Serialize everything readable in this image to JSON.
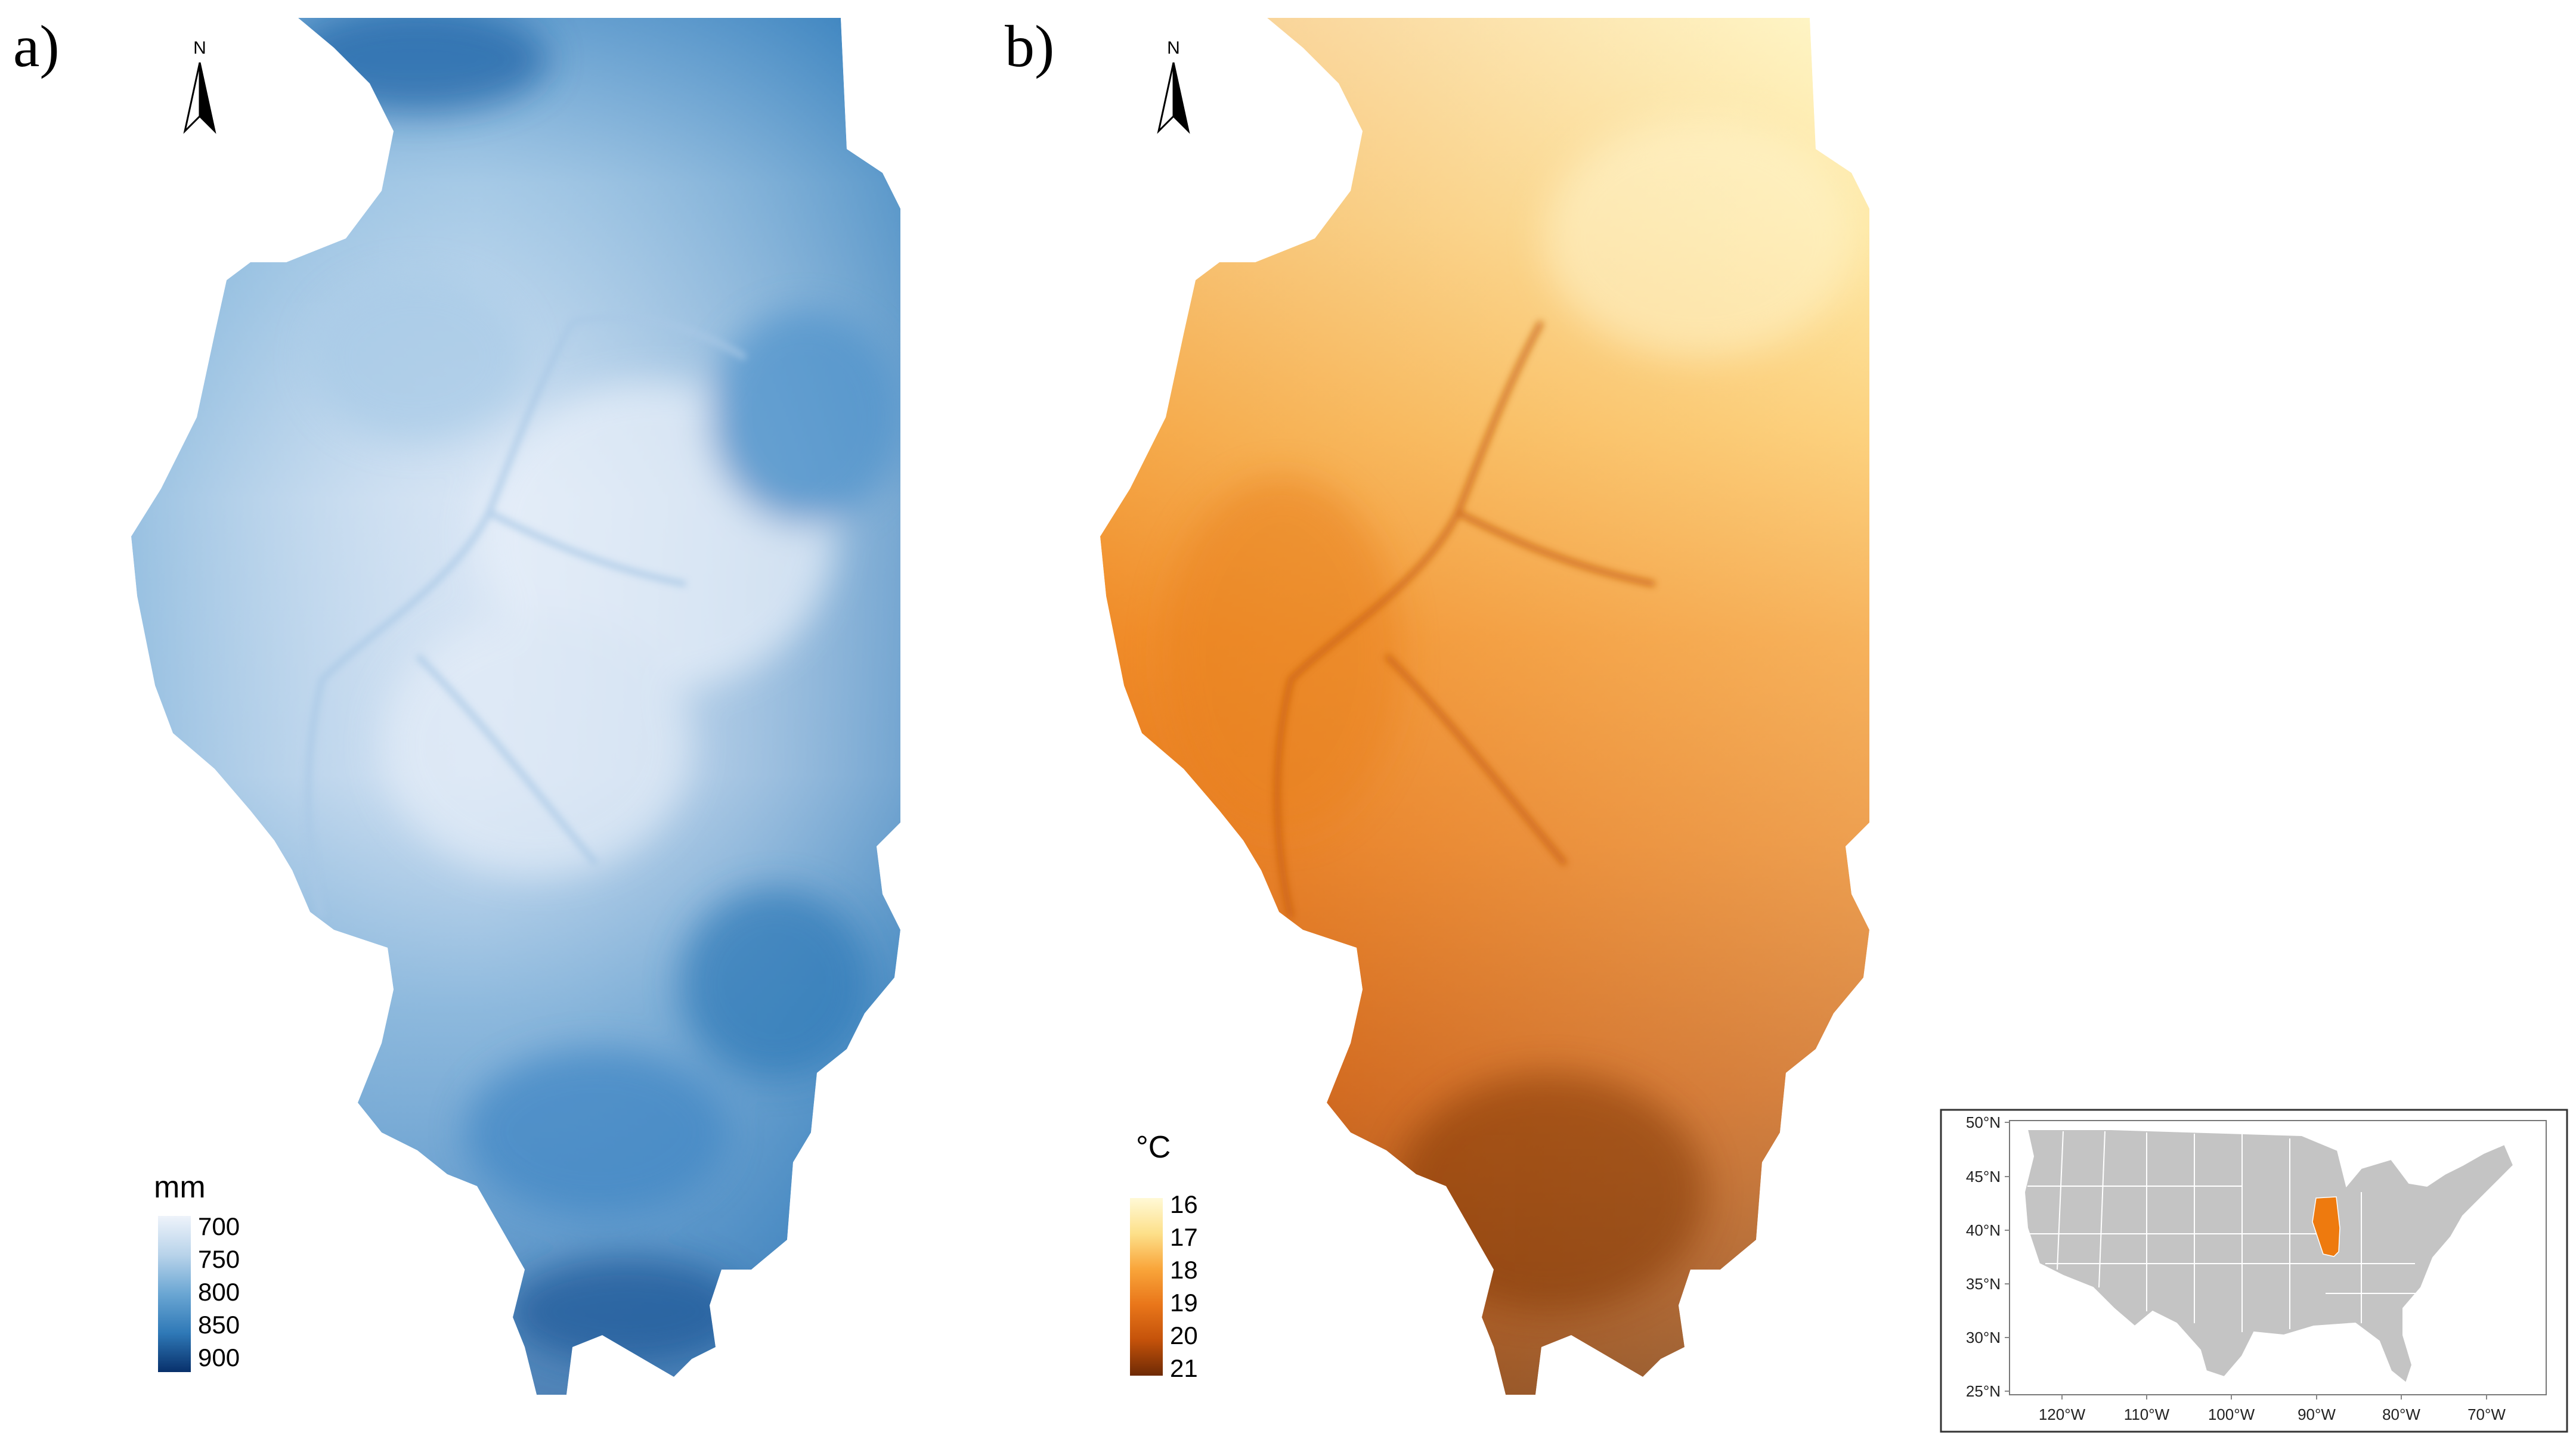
{
  "panels": [
    {
      "label": "a)",
      "legend": {
        "title": "mm",
        "ticks": [
          "700",
          "750",
          "800",
          "850",
          "900"
        ],
        "colors": [
          "#e8eef8",
          "#b8d3ea",
          "#6aa6d3",
          "#2f79b7",
          "#08306b"
        ]
      },
      "north_letter": "N"
    },
    {
      "label": "b)",
      "legend": {
        "title": "°C",
        "ticks": [
          "16",
          "17",
          "18",
          "19",
          "20",
          "21"
        ],
        "colors": [
          "#fff7c8",
          "#fde08a",
          "#f9a53a",
          "#e9761a",
          "#c4520a",
          "#6e2a05"
        ]
      },
      "north_letter": "N"
    }
  ],
  "inset": {
    "lat_labels": [
      "50°N",
      "45°N",
      "40°N",
      "35°N",
      "30°N",
      "25°N"
    ],
    "lon_labels": [
      "120°W",
      "110°W",
      "100°W",
      "90°W",
      "80°W",
      "70°W"
    ],
    "land_color": "#c4c4c4",
    "highlight_color": "#ee7a0e",
    "highlight_state": "Illinois"
  }
}
